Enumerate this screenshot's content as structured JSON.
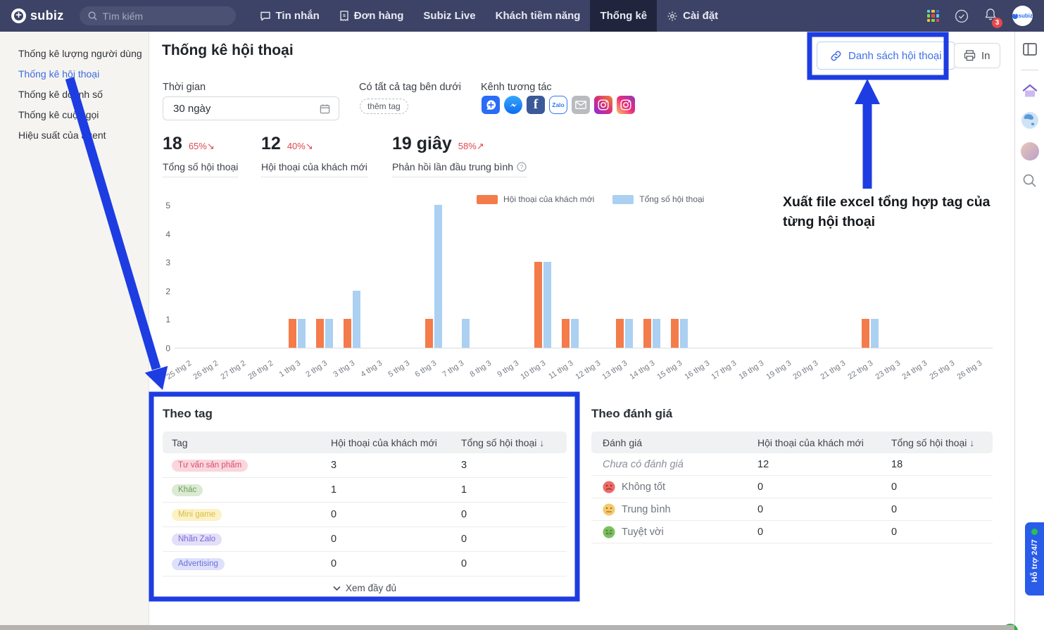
{
  "topbar": {
    "brand": "subiz",
    "search_placeholder": "Tìm kiếm",
    "nav": [
      {
        "label": "Tin nhắn"
      },
      {
        "label": "Đơn hàng"
      },
      {
        "label": "Subiz Live"
      },
      {
        "label": "Khách tiềm năng"
      },
      {
        "label": "Thống kê",
        "active": true
      },
      {
        "label": "Cài đặt"
      }
    ],
    "notification_count": "3",
    "account_label": "subiz"
  },
  "sidebar": {
    "items": [
      {
        "label": "Thống kê lượng người dùng"
      },
      {
        "label": "Thống kê hội thoại",
        "active": true
      },
      {
        "label": "Thống kê doanh số"
      },
      {
        "label": "Thống kê cuộc gọi"
      },
      {
        "label": "Hiệu suất của agent"
      }
    ]
  },
  "header": {
    "title": "Thống kê hội thoại",
    "conversation_list_button": "Danh sách hội thoại",
    "print_button": "In"
  },
  "filters": {
    "time_label": "Thời gian",
    "time_value": "30 ngày",
    "tag_label": "Có tất cả tag bên dưới",
    "add_tag_chip": "thêm tag",
    "channel_label": "Kênh tương tác",
    "zalo_text": "Zalo",
    "facebook_letter": "f"
  },
  "stats": [
    {
      "value": "18",
      "trend": "65%",
      "trend_icon": "↘",
      "label": "Tổng số hội thoại"
    },
    {
      "value": "12",
      "trend": "40%",
      "trend_icon": "↘",
      "label": "Hội thoại của khách mới"
    },
    {
      "value": "19 giây",
      "trend": "58%",
      "trend_icon": "↗",
      "label": "Phản hồi lần đầu trung bình"
    }
  ],
  "chart_data": {
    "type": "bar",
    "title": "",
    "xlabel": "",
    "ylabel": "",
    "ylim": [
      0,
      5
    ],
    "yticks": [
      0,
      1,
      2,
      3,
      4,
      5
    ],
    "grid": false,
    "legend_position": "top-center",
    "categories": [
      "25 thg 2",
      "26 thg 2",
      "27 thg 2",
      "28 thg 2",
      "1 thg 3",
      "2 thg 3",
      "3 thg 3",
      "4 thg 3",
      "5 thg 3",
      "6 thg 3",
      "7 thg 3",
      "8 thg 3",
      "9 thg 3",
      "10 thg 3",
      "11 thg 3",
      "12 thg 3",
      "13 thg 3",
      "14 thg 3",
      "15 thg 3",
      "16 thg 3",
      "17 thg 3",
      "18 thg 3",
      "19 thg 3",
      "20 thg 3",
      "21 thg 3",
      "22 thg 3",
      "23 thg 3",
      "24 thg 3",
      "25 thg 3",
      "26 thg 3"
    ],
    "series": [
      {
        "name": "Hội thoại của khách mới",
        "color": "#f47b4a",
        "values": [
          0,
          0,
          0,
          0,
          1,
          1,
          1,
          0,
          0,
          1,
          0,
          0,
          0,
          3,
          1,
          0,
          1,
          1,
          1,
          0,
          0,
          0,
          0,
          0,
          0,
          1,
          0,
          0,
          0,
          0
        ]
      },
      {
        "name": "Tổng số hội thoại",
        "color": "#abd0f1",
        "values": [
          0,
          0,
          0,
          0,
          1,
          1,
          2,
          0,
          0,
          5,
          1,
          0,
          0,
          3,
          1,
          0,
          1,
          1,
          1,
          0,
          0,
          0,
          0,
          0,
          0,
          1,
          0,
          0,
          0,
          0
        ]
      }
    ]
  },
  "tag_table": {
    "title": "Theo tag",
    "headers": [
      "Tag",
      "Hội thoại của khách mới",
      "Tổng số hội thoại"
    ],
    "rows": [
      {
        "tag": "Tư vấn sản phẩm",
        "chip_bg": "#fad6dd",
        "chip_color": "#d94f6e",
        "new": "3",
        "total": "3"
      },
      {
        "tag": "Khác",
        "chip_bg": "#dcead4",
        "chip_color": "#6a9e57",
        "new": "1",
        "total": "1"
      },
      {
        "tag": "Mini game",
        "chip_bg": "#fcf2c5",
        "chip_color": "#d8bb4a",
        "new": "0",
        "total": "0"
      },
      {
        "tag": "Nhãn Zalo",
        "chip_bg": "#e3dff8",
        "chip_color": "#7a68d8",
        "new": "0",
        "total": "0"
      },
      {
        "tag": "Advertising",
        "chip_bg": "#dfe1fa",
        "chip_color": "#6a6fdb",
        "new": "0",
        "total": "0"
      }
    ],
    "footer": "Xem đầy đủ"
  },
  "rating_table": {
    "title": "Theo đánh giá",
    "headers": [
      "Đánh giá",
      "Hội thoại của khách mới",
      "Tổng số hội thoại"
    ],
    "rows": [
      {
        "label": "Chưa có đánh giá",
        "icon": "none",
        "new": "12",
        "total": "18"
      },
      {
        "label": "Không tốt",
        "icon": "sad-face",
        "new": "0",
        "total": "0"
      },
      {
        "label": "Trung bình",
        "icon": "neutral-face",
        "new": "0",
        "total": "0"
      },
      {
        "label": "Tuyệt vời",
        "icon": "happy-face",
        "new": "0",
        "total": "0"
      }
    ]
  },
  "icons": {
    "sort_desc": "↓"
  },
  "annotations": {
    "excel_note": "Xuất file excel tổng hợp tag của từng hội thoại",
    "highlight_color": "#1d3de2"
  },
  "support_tab": "Hỗ trợ 24/7"
}
